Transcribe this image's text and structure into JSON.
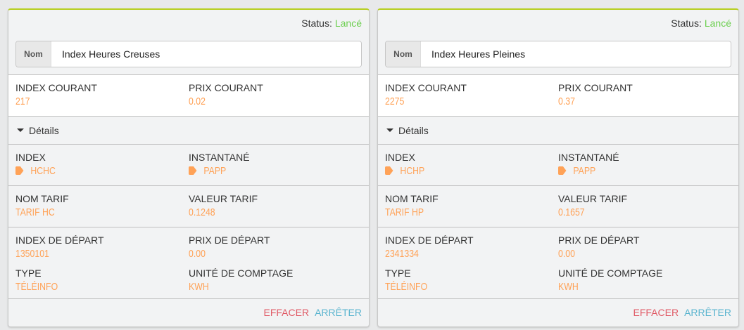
{
  "colors": {
    "status_ok": "#6ccf4f",
    "value": "#ffa257",
    "accent_top": "#b7cf1f",
    "clear": "#e05a66",
    "stop": "#5ab4cf"
  },
  "cards": [
    {
      "status_label": "Status:",
      "status_value": "Lancé",
      "name_label": "Nom",
      "name_value": "Index Heures Creuses",
      "index_courant_label": "INDEX COURANT",
      "index_courant": "217",
      "prix_courant_label": "PRIX COURANT",
      "prix_courant": "0.02",
      "details_label": "Détails",
      "index_label": "INDEX",
      "index": "HCHC",
      "instantane_label": "INSTANTANÉ",
      "instantane": "PAPP",
      "nom_tarif_label": "NOM TARIF",
      "nom_tarif": "TARIF HC",
      "valeur_tarif_label": "VALEUR TARIF",
      "valeur_tarif": "0.1248",
      "index_depart_label": "INDEX DE DÉPART",
      "index_depart": "1350101",
      "prix_depart_label": "PRIX DE DÉPART",
      "prix_depart": "0.00",
      "type_label": "TYPE",
      "type": "TÉLÉINFO",
      "unite_label": "UNITÉ DE COMPTAGE",
      "unite": "KWH",
      "clear_label": "EFFACER",
      "stop_label": "ARRÊTER"
    },
    {
      "status_label": "Status:",
      "status_value": "Lancé",
      "name_label": "Nom",
      "name_value": "Index Heures Pleines",
      "index_courant_label": "INDEX COURANT",
      "index_courant": "2275",
      "prix_courant_label": "PRIX COURANT",
      "prix_courant": "0.37",
      "details_label": "Détails",
      "index_label": "INDEX",
      "index": "HCHP",
      "instantane_label": "INSTANTANÉ",
      "instantane": "PAPP",
      "nom_tarif_label": "NOM TARIF",
      "nom_tarif": "TARIF HP",
      "valeur_tarif_label": "VALEUR TARIF",
      "valeur_tarif": "0.1657",
      "index_depart_label": "INDEX DE DÉPART",
      "index_depart": "2341334",
      "prix_depart_label": "PRIX DE DÉPART",
      "prix_depart": "0.00",
      "type_label": "TYPE",
      "type": "TÉLÉINFO",
      "unite_label": "UNITÉ DE COMPTAGE",
      "unite": "KWH",
      "clear_label": "EFFACER",
      "stop_label": "ARRÊTER"
    }
  ]
}
